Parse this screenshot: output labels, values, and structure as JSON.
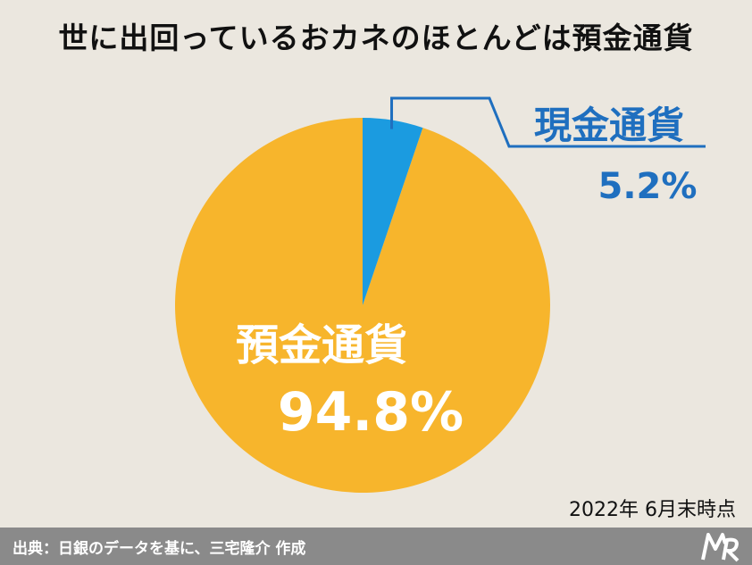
{
  "title": "世に出回っているおカネのほとんどは預金通貨",
  "date_note": "2022年 6月末時点",
  "footer": {
    "source": "出典：日銀のデータを基に、三宅隆介 作成",
    "logo_icon": "mr-logo-icon"
  },
  "colors": {
    "background": "#ebe7df",
    "deposit": "#f7b52c",
    "cash": "#1b9be0",
    "cash_label": "#1f6fbf",
    "footer": "#8a8a8a"
  },
  "chart_data": {
    "type": "pie",
    "title": "世に出回っているおカネのほとんどは預金通貨",
    "start": "12 o'clock, clockwise",
    "slices": [
      {
        "label": "現金通貨",
        "value": 5.2,
        "value_label": "5.2%",
        "color": "#1b9be0"
      },
      {
        "label": "預金通貨",
        "value": 94.8,
        "value_label": "94.8%",
        "color": "#f7b52c"
      }
    ]
  }
}
